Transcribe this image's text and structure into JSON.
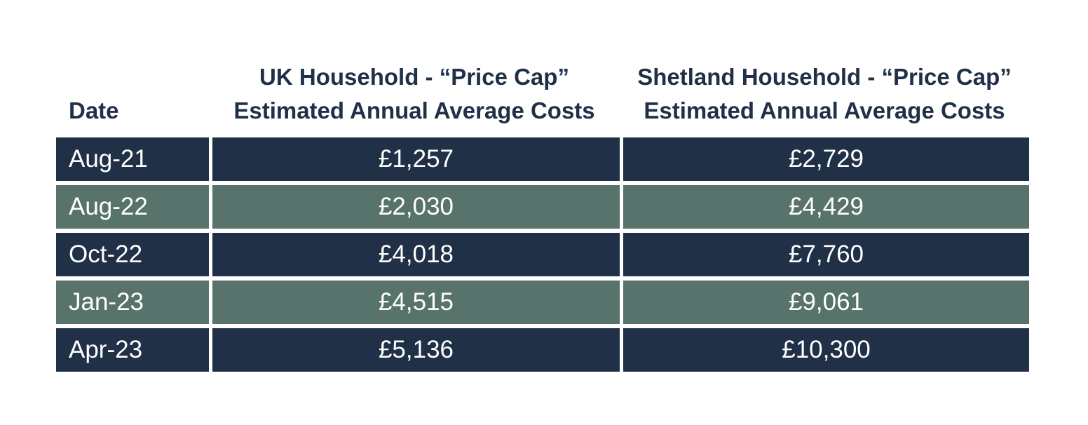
{
  "chart_data": {
    "type": "table",
    "columns": [
      "Date",
      "UK Household - “Price Cap” Estimated Annual Average Costs",
      "Shetland Household - “Price Cap” Estimated Annual Average Costs"
    ],
    "header": {
      "date": "Date",
      "uk_line1": "UK Household - “Price Cap”",
      "uk_line2": "Estimated Annual Average Costs",
      "shetland_line1": "Shetland Household - “Price Cap”",
      "shetland_line2": "Estimated Annual Average Costs"
    },
    "rows": [
      {
        "date": "Aug-21",
        "uk": "£1,257",
        "shetland": "£2,729"
      },
      {
        "date": "Aug-22",
        "uk": "£2,030",
        "shetland": "£4,429"
      },
      {
        "date": "Oct-22",
        "uk": "£4,018",
        "shetland": "£7,760"
      },
      {
        "date": "Jan-23",
        "uk": "£4,515",
        "shetland": "£9,061"
      },
      {
        "date": "Apr-23",
        "uk": "£5,136",
        "shetland": "£10,300"
      }
    ],
    "values": {
      "uk": [
        1257,
        2030,
        4018,
        4515,
        5136
      ],
      "shetland": [
        2729,
        4429,
        7760,
        9061,
        10300
      ]
    },
    "unit": "£"
  },
  "colors": {
    "header_text": "#1f3047",
    "row_dark": "#1f3047",
    "row_green": "#58736c",
    "cell_text": "#ffffff"
  }
}
